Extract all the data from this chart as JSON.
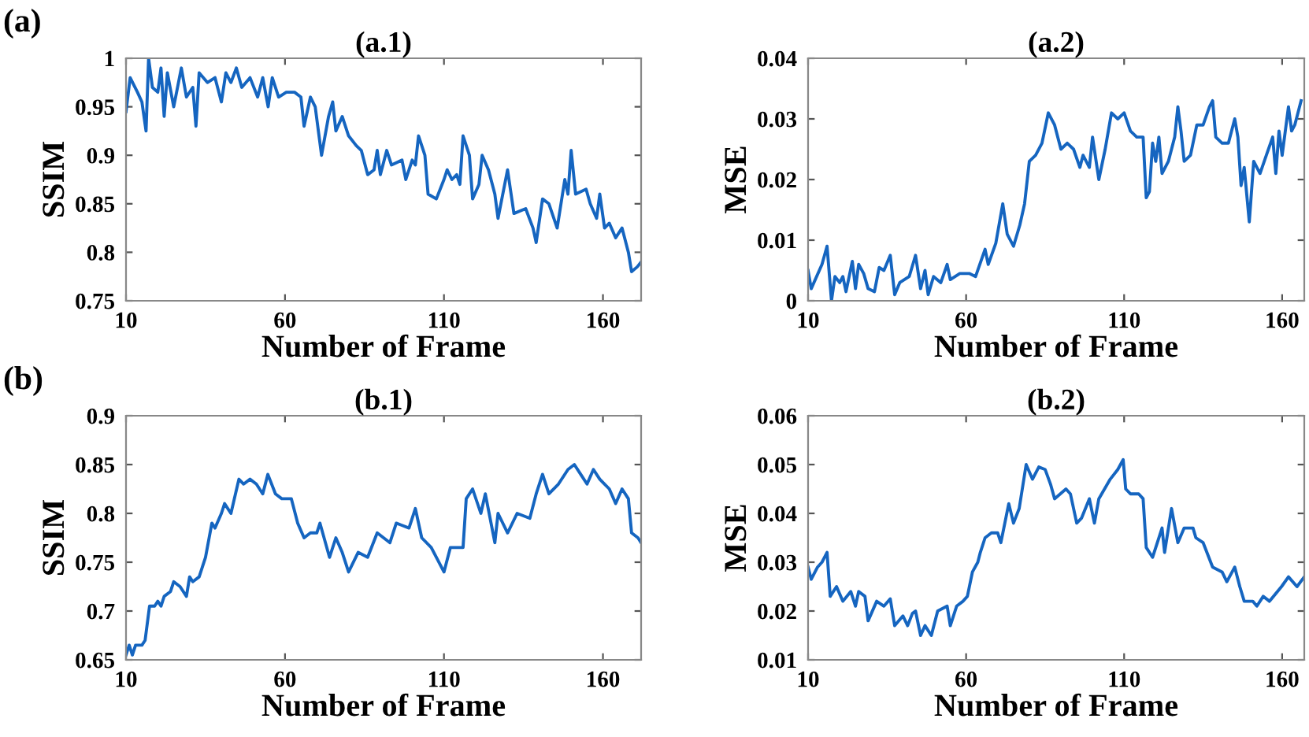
{
  "chart_data": [
    {
      "type": "line",
      "title": "(a.1)",
      "xlabel": "Number of Frame",
      "ylabel": "SSIM",
      "annotations": [
        "(a)"
      ],
      "xlim": [
        10,
        172
      ],
      "xticks": [
        10,
        60,
        110,
        160
      ],
      "ylim": [
        0.75,
        1
      ],
      "yticks": [
        0.75,
        0.8,
        0.85,
        0.9,
        0.95,
        1
      ],
      "grid": false,
      "marker": "none",
      "line_style": "solid",
      "series": [
        {
          "color": "#1565c0",
          "x": [
            10,
            11.3,
            13.6,
            15,
            16.3,
            17.1,
            18.3,
            20,
            21,
            22,
            23,
            25,
            26.5,
            27.4,
            29,
            31,
            32,
            33,
            35.6,
            38,
            40,
            41.4,
            43,
            44.7,
            46.4,
            49,
            51.4,
            53,
            54.7,
            56,
            58,
            60.4,
            63,
            65,
            66,
            68,
            69.5,
            71.5,
            73.7,
            75,
            76,
            78,
            80,
            82.4,
            84,
            86,
            88,
            89,
            90,
            92,
            93.5,
            96.8,
            98,
            100,
            101,
            102,
            104,
            105,
            107.6,
            110,
            111,
            112.5,
            114,
            115,
            116,
            118,
            119,
            121,
            122,
            124,
            126,
            127,
            130,
            132,
            135.7,
            138,
            139,
            141,
            143,
            145.6,
            148,
            149,
            150,
            151.4,
            154.7,
            156,
            158,
            159,
            160.5,
            162,
            164,
            166,
            168,
            169,
            170.8,
            172
          ],
          "values": [
            0.945,
            0.98,
            0.965,
            0.955,
            0.925,
            1.0,
            0.97,
            0.965,
            0.99,
            0.94,
            0.985,
            0.95,
            0.975,
            0.99,
            0.96,
            0.97,
            0.93,
            0.985,
            0.975,
            0.98,
            0.955,
            0.985,
            0.975,
            0.99,
            0.97,
            0.98,
            0.96,
            0.98,
            0.95,
            0.98,
            0.96,
            0.965,
            0.965,
            0.96,
            0.93,
            0.96,
            0.95,
            0.9,
            0.94,
            0.955,
            0.925,
            0.94,
            0.92,
            0.91,
            0.905,
            0.88,
            0.885,
            0.905,
            0.88,
            0.905,
            0.89,
            0.895,
            0.875,
            0.895,
            0.89,
            0.92,
            0.9,
            0.86,
            0.855,
            0.875,
            0.885,
            0.875,
            0.88,
            0.87,
            0.92,
            0.9,
            0.855,
            0.87,
            0.9,
            0.885,
            0.86,
            0.835,
            0.885,
            0.84,
            0.845,
            0.825,
            0.81,
            0.855,
            0.85,
            0.825,
            0.875,
            0.86,
            0.905,
            0.86,
            0.865,
            0.85,
            0.835,
            0.86,
            0.825,
            0.83,
            0.815,
            0.825,
            0.8,
            0.78,
            0.785,
            0.79
          ]
        }
      ]
    },
    {
      "type": "line",
      "title": "(a.2)",
      "xlabel": "Number of Frame",
      "ylabel": "MSE",
      "xlim": [
        10,
        167
      ],
      "xticks": [
        10,
        60,
        110,
        160
      ],
      "ylim": [
        0,
        0.04
      ],
      "yticks": [
        0,
        0.01,
        0.02,
        0.03,
        0.04
      ],
      "grid": false,
      "marker": "none",
      "line_style": "solid",
      "series": [
        {
          "color": "#1565c0",
          "x": [
            10,
            11,
            14.4,
            16,
            17.4,
            18.5,
            20,
            21,
            22,
            24,
            25,
            26,
            27.6,
            29,
            31,
            32.5,
            34,
            36,
            37.4,
            39,
            42,
            44,
            45.6,
            47,
            48,
            49.7,
            52,
            54,
            55,
            58,
            61,
            63,
            66,
            67,
            69.4,
            71.6,
            73,
            75,
            77,
            78.5,
            80,
            82,
            84,
            86,
            88,
            90,
            92,
            94,
            96,
            97,
            99,
            100,
            102,
            104,
            106,
            108,
            110,
            112,
            114,
            116,
            117,
            118,
            119,
            120,
            121,
            122,
            124,
            126,
            127,
            128,
            129,
            131,
            133,
            135,
            137,
            138,
            139,
            141,
            143,
            145,
            146,
            147,
            148,
            149.6,
            151,
            153,
            155,
            157,
            158,
            159,
            160,
            162,
            163,
            164,
            166
          ],
          "values": [
            0.005,
            0.002,
            0.006,
            0.009,
            0.0,
            0.004,
            0.003,
            0.004,
            0.0015,
            0.0065,
            0.002,
            0.006,
            0.0045,
            0.002,
            0.0015,
            0.0055,
            0.005,
            0.0075,
            0.001,
            0.003,
            0.004,
            0.0075,
            0.002,
            0.005,
            0.001,
            0.004,
            0.003,
            0.006,
            0.0035,
            0.0045,
            0.0045,
            0.004,
            0.0085,
            0.006,
            0.0095,
            0.016,
            0.011,
            0.009,
            0.0125,
            0.016,
            0.023,
            0.024,
            0.026,
            0.031,
            0.029,
            0.025,
            0.026,
            0.025,
            0.022,
            0.024,
            0.022,
            0.027,
            0.02,
            0.025,
            0.031,
            0.03,
            0.031,
            0.028,
            0.027,
            0.027,
            0.017,
            0.018,
            0.026,
            0.023,
            0.027,
            0.021,
            0.023,
            0.027,
            0.032,
            0.028,
            0.023,
            0.024,
            0.029,
            0.029,
            0.032,
            0.033,
            0.027,
            0.026,
            0.026,
            0.03,
            0.027,
            0.019,
            0.022,
            0.013,
            0.023,
            0.021,
            0.024,
            0.027,
            0.021,
            0.028,
            0.024,
            0.032,
            0.028,
            0.029,
            0.033
          ]
        }
      ]
    },
    {
      "type": "line",
      "title": "(b.1)",
      "xlabel": "Number of Frame",
      "ylabel": "SSIM",
      "annotations": [
        "(b)"
      ],
      "xlim": [
        10,
        172
      ],
      "xticks": [
        10,
        60,
        110,
        160
      ],
      "ylim": [
        0.65,
        0.9
      ],
      "yticks": [
        0.65,
        0.7,
        0.75,
        0.8,
        0.85,
        0.9
      ],
      "grid": false,
      "marker": "none",
      "line_style": "solid",
      "series": [
        {
          "color": "#1565c0",
          "x": [
            10,
            11,
            12,
            13,
            15,
            16,
            17.4,
            19,
            20,
            21,
            22,
            24,
            25,
            27,
            29,
            30,
            31,
            33,
            35,
            37,
            38,
            40,
            41,
            43,
            45.5,
            47,
            49,
            51,
            53,
            54.6,
            57,
            59,
            62,
            64,
            66,
            68,
            70,
            71,
            74,
            76,
            78,
            80,
            83,
            86,
            89,
            93,
            95,
            99,
            101,
            103,
            106,
            110,
            112,
            114,
            116,
            117,
            119,
            121.6,
            123,
            126,
            127,
            130,
            133,
            137,
            139,
            141,
            143,
            146,
            149,
            151,
            153,
            155,
            157,
            159,
            162,
            164,
            166,
            168,
            169,
            171,
            172
          ],
          "values": [
            0.655,
            0.665,
            0.655,
            0.665,
            0.665,
            0.67,
            0.705,
            0.705,
            0.71,
            0.705,
            0.715,
            0.72,
            0.73,
            0.725,
            0.715,
            0.735,
            0.73,
            0.735,
            0.755,
            0.79,
            0.785,
            0.8,
            0.81,
            0.8,
            0.835,
            0.83,
            0.835,
            0.83,
            0.82,
            0.84,
            0.82,
            0.815,
            0.815,
            0.79,
            0.775,
            0.78,
            0.78,
            0.79,
            0.755,
            0.775,
            0.76,
            0.74,
            0.76,
            0.755,
            0.78,
            0.77,
            0.79,
            0.785,
            0.805,
            0.775,
            0.765,
            0.74,
            0.765,
            0.765,
            0.765,
            0.815,
            0.825,
            0.8,
            0.82,
            0.77,
            0.8,
            0.78,
            0.8,
            0.795,
            0.82,
            0.84,
            0.82,
            0.83,
            0.845,
            0.85,
            0.84,
            0.83,
            0.845,
            0.835,
            0.825,
            0.81,
            0.825,
            0.815,
            0.78,
            0.775,
            0.77
          ]
        }
      ]
    },
    {
      "type": "line",
      "title": "(b.2)",
      "xlabel": "Number of Frame",
      "ylabel": "MSE",
      "xlim": [
        10,
        167
      ],
      "xticks": [
        10,
        60,
        110,
        160
      ],
      "ylim": [
        0.01,
        0.06
      ],
      "yticks": [
        0.01,
        0.02,
        0.03,
        0.04,
        0.05,
        0.06
      ],
      "grid": false,
      "marker": "none",
      "line_style": "solid",
      "series": [
        {
          "color": "#1565c0",
          "x": [
            10,
            11,
            13,
            14.4,
            16,
            17,
            19,
            21,
            23.5,
            25,
            26,
            28,
            29,
            31.7,
            34,
            36,
            37.4,
            40,
            41.5,
            43,
            44,
            45.6,
            47,
            49,
            51,
            54,
            55,
            57,
            59,
            60.4,
            62,
            63.7,
            64.5,
            66,
            68,
            70,
            71,
            73.5,
            75,
            76.8,
            79,
            81,
            83,
            85,
            86.7,
            88,
            91.6,
            93,
            95,
            96.5,
            99,
            100.6,
            102,
            105.6,
            108,
            109.7,
            110.5,
            112,
            114.6,
            116,
            117,
            119,
            122,
            122.8,
            125,
            127,
            129,
            131.8,
            132.7,
            135,
            138,
            141,
            142.5,
            145,
            146.6,
            148,
            150.7,
            152,
            154,
            156,
            159.8,
            162,
            164.7,
            167
          ],
          "values": [
            0.029,
            0.0265,
            0.029,
            0.03,
            0.032,
            0.023,
            0.025,
            0.022,
            0.024,
            0.021,
            0.024,
            0.023,
            0.018,
            0.022,
            0.021,
            0.0225,
            0.017,
            0.019,
            0.017,
            0.0195,
            0.02,
            0.015,
            0.017,
            0.015,
            0.02,
            0.021,
            0.017,
            0.021,
            0.022,
            0.023,
            0.028,
            0.03,
            0.032,
            0.035,
            0.036,
            0.036,
            0.034,
            0.042,
            0.038,
            0.041,
            0.05,
            0.047,
            0.0495,
            0.049,
            0.046,
            0.043,
            0.045,
            0.044,
            0.038,
            0.039,
            0.043,
            0.038,
            0.043,
            0.047,
            0.049,
            0.051,
            0.045,
            0.044,
            0.044,
            0.043,
            0.033,
            0.031,
            0.037,
            0.032,
            0.041,
            0.034,
            0.037,
            0.037,
            0.035,
            0.034,
            0.029,
            0.028,
            0.026,
            0.029,
            0.025,
            0.022,
            0.022,
            0.021,
            0.023,
            0.022,
            0.025,
            0.027,
            0.025,
            0.027
          ]
        }
      ]
    }
  ]
}
